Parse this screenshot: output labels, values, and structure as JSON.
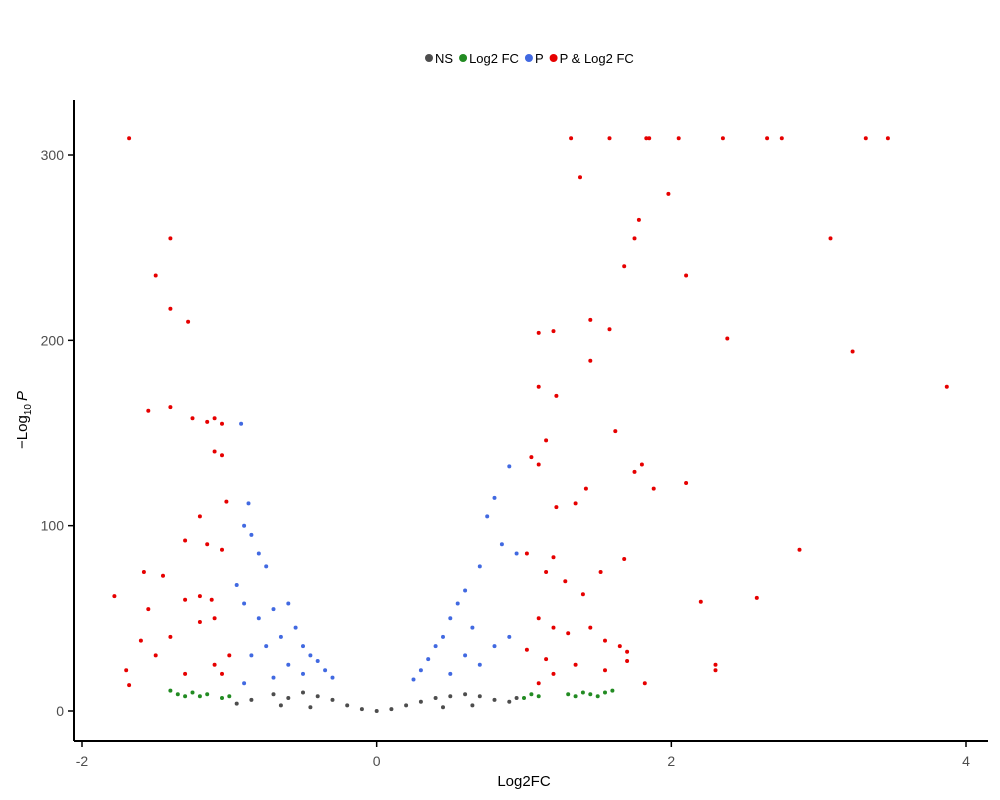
{
  "chart_data": {
    "type": "scatter",
    "title": "",
    "xlabel": "Log2FC",
    "ylabel": {
      "prefix": "−Log",
      "subscript": "10",
      "suffix": "P"
    },
    "xlim": [
      -2.0,
      4.1
    ],
    "ylim": [
      -5,
      330
    ],
    "x_ticks": [
      -2,
      0,
      2,
      4
    ],
    "x_tick_labels": [
      "-2",
      "0",
      "2",
      "4"
    ],
    "y_ticks": [
      0,
      100,
      200,
      300
    ],
    "y_tick_labels": [
      "0",
      "100",
      "200",
      "300"
    ],
    "grid": false,
    "legend_position": "top",
    "legend": [
      {
        "label": "NS",
        "color": "#4d4d4d"
      },
      {
        "label": "Log2 FC",
        "color": "#228b22"
      },
      {
        "label": "P",
        "color": "#4169e1"
      },
      {
        "label": "P & Log2 FC",
        "color": "#e60000"
      }
    ],
    "series": [
      {
        "name": "NS",
        "color": "#4d4d4d",
        "points": [
          [
            -0.95,
            4
          ],
          [
            -0.85,
            6
          ],
          [
            -0.7,
            9
          ],
          [
            -0.6,
            7
          ],
          [
            -0.5,
            10
          ],
          [
            -0.4,
            8
          ],
          [
            -0.3,
            6
          ],
          [
            -0.2,
            3
          ],
          [
            -0.1,
            1
          ],
          [
            0,
            0
          ],
          [
            0.1,
            1
          ],
          [
            0.2,
            3
          ],
          [
            0.3,
            5
          ],
          [
            0.4,
            7
          ],
          [
            0.5,
            8
          ],
          [
            0.6,
            9
          ],
          [
            0.7,
            8
          ],
          [
            0.8,
            6
          ],
          [
            0.9,
            5
          ],
          [
            0.95,
            7
          ],
          [
            -0.65,
            3
          ],
          [
            -0.45,
            2
          ],
          [
            0.45,
            2
          ],
          [
            0.65,
            3
          ]
        ]
      },
      {
        "name": "Log2 FC",
        "color": "#228b22",
        "points": [
          [
            -1.4,
            11
          ],
          [
            -1.35,
            9
          ],
          [
            -1.3,
            8
          ],
          [
            -1.25,
            10
          ],
          [
            -1.2,
            8
          ],
          [
            -1.15,
            9
          ],
          [
            -1.05,
            7
          ],
          [
            -1.0,
            8
          ],
          [
            1.0,
            7
          ],
          [
            1.05,
            9
          ],
          [
            1.1,
            8
          ],
          [
            1.3,
            9
          ],
          [
            1.35,
            8
          ],
          [
            1.4,
            10
          ],
          [
            1.45,
            9
          ],
          [
            1.5,
            8
          ],
          [
            1.55,
            10
          ],
          [
            1.6,
            11
          ]
        ]
      },
      {
        "name": "P",
        "color": "#4169e1",
        "points": [
          [
            -0.92,
            155
          ],
          [
            -0.87,
            112
          ],
          [
            -0.9,
            100
          ],
          [
            -0.85,
            95
          ],
          [
            -0.8,
            85
          ],
          [
            -0.75,
            78
          ],
          [
            -0.95,
            68
          ],
          [
            -0.9,
            58
          ],
          [
            -0.8,
            50
          ],
          [
            -0.7,
            55
          ],
          [
            -0.6,
            58
          ],
          [
            -0.55,
            45
          ],
          [
            -0.65,
            40
          ],
          [
            -0.5,
            35
          ],
          [
            -0.45,
            30
          ],
          [
            -0.4,
            27
          ],
          [
            -0.35,
            22
          ],
          [
            -0.3,
            18
          ],
          [
            -0.75,
            35
          ],
          [
            -0.85,
            30
          ],
          [
            -0.6,
            25
          ],
          [
            -0.5,
            20
          ],
          [
            -0.7,
            18
          ],
          [
            -0.9,
            15
          ],
          [
            0.8,
            115
          ],
          [
            0.75,
            105
          ],
          [
            0.9,
            132
          ],
          [
            0.95,
            85
          ],
          [
            0.85,
            90
          ],
          [
            0.7,
            78
          ],
          [
            0.6,
            65
          ],
          [
            0.55,
            58
          ],
          [
            0.5,
            50
          ],
          [
            0.65,
            45
          ],
          [
            0.45,
            40
          ],
          [
            0.4,
            35
          ],
          [
            0.35,
            28
          ],
          [
            0.3,
            22
          ],
          [
            0.25,
            17
          ],
          [
            0.6,
            30
          ],
          [
            0.7,
            25
          ],
          [
            0.5,
            20
          ],
          [
            0.8,
            35
          ],
          [
            0.9,
            40
          ]
        ]
      },
      {
        "name": "P & Log2 FC",
        "color": "#e60000",
        "points": [
          [
            -1.68,
            309
          ],
          [
            -1.4,
            255
          ],
          [
            -1.5,
            235
          ],
          [
            -1.4,
            217
          ],
          [
            -1.28,
            210
          ],
          [
            -1.55,
            162
          ],
          [
            -1.4,
            164
          ],
          [
            -1.25,
            158
          ],
          [
            -1.15,
            156
          ],
          [
            -1.1,
            158
          ],
          [
            -1.05,
            155
          ],
          [
            -1.1,
            140
          ],
          [
            -1.05,
            138
          ],
          [
            -1.2,
            105
          ],
          [
            -1.3,
            92
          ],
          [
            -1.15,
            90
          ],
          [
            -1.05,
            87
          ],
          [
            -1.02,
            113
          ],
          [
            -1.58,
            75
          ],
          [
            -1.45,
            73
          ],
          [
            -1.78,
            62
          ],
          [
            -1.55,
            55
          ],
          [
            -1.3,
            60
          ],
          [
            -1.2,
            62
          ],
          [
            -1.12,
            60
          ],
          [
            -1.1,
            50
          ],
          [
            -1.2,
            48
          ],
          [
            -1.4,
            40
          ],
          [
            -1.5,
            30
          ],
          [
            -1.6,
            38
          ],
          [
            -1.7,
            22
          ],
          [
            -1.68,
            14
          ],
          [
            -1.3,
            20
          ],
          [
            -1.1,
            25
          ],
          [
            -1.0,
            30
          ],
          [
            -1.05,
            20
          ],
          [
            1.32,
            309
          ],
          [
            1.58,
            309
          ],
          [
            1.83,
            309
          ],
          [
            1.85,
            309
          ],
          [
            2.05,
            309
          ],
          [
            2.35,
            309
          ],
          [
            2.65,
            309
          ],
          [
            2.75,
            309
          ],
          [
            3.32,
            309
          ],
          [
            3.47,
            309
          ],
          [
            1.38,
            288
          ],
          [
            1.98,
            279
          ],
          [
            1.78,
            265
          ],
          [
            1.75,
            255
          ],
          [
            3.08,
            255
          ],
          [
            1.68,
            240
          ],
          [
            2.1,
            235
          ],
          [
            1.45,
            211
          ],
          [
            1.58,
            206
          ],
          [
            1.1,
            204
          ],
          [
            1.2,
            205
          ],
          [
            2.38,
            201
          ],
          [
            3.23,
            194
          ],
          [
            1.45,
            189
          ],
          [
            1.1,
            175
          ],
          [
            3.87,
            175
          ],
          [
            1.22,
            170
          ],
          [
            1.62,
            151
          ],
          [
            1.15,
            146
          ],
          [
            1.05,
            137
          ],
          [
            1.1,
            133
          ],
          [
            1.8,
            133
          ],
          [
            1.75,
            129
          ],
          [
            2.1,
            123
          ],
          [
            1.88,
            120
          ],
          [
            1.42,
            120
          ],
          [
            1.35,
            112
          ],
          [
            1.22,
            110
          ],
          [
            1.02,
            85
          ],
          [
            1.2,
            83
          ],
          [
            1.68,
            82
          ],
          [
            2.87,
            87
          ],
          [
            1.15,
            75
          ],
          [
            1.52,
            75
          ],
          [
            1.28,
            70
          ],
          [
            1.4,
            63
          ],
          [
            2.2,
            59
          ],
          [
            2.58,
            61
          ],
          [
            1.1,
            50
          ],
          [
            1.2,
            45
          ],
          [
            1.3,
            42
          ],
          [
            1.45,
            45
          ],
          [
            1.55,
            38
          ],
          [
            1.65,
            35
          ],
          [
            1.7,
            32
          ],
          [
            1.02,
            33
          ],
          [
            1.15,
            28
          ],
          [
            1.35,
            25
          ],
          [
            1.55,
            22
          ],
          [
            1.7,
            27
          ],
          [
            2.3,
            25
          ],
          [
            2.3,
            22
          ],
          [
            1.82,
            15
          ],
          [
            1.1,
            15
          ],
          [
            1.2,
            20
          ]
        ]
      }
    ]
  }
}
